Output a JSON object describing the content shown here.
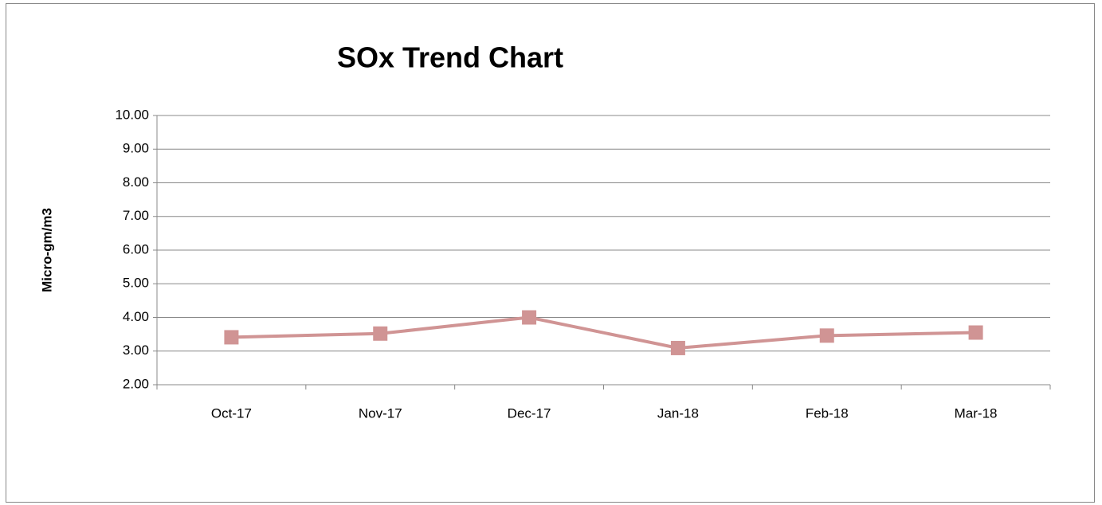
{
  "chart_data": {
    "type": "line",
    "title": "SOx Trend Chart",
    "y_label": "Micro-gm/m3",
    "categories": [
      "Oct-17",
      "Nov-17",
      "Dec-17",
      "Jan-18",
      "Feb-18",
      "Mar-18"
    ],
    "series": [
      {
        "name": "SOx",
        "color": "#d09494",
        "values": [
          3.41,
          3.52,
          4.0,
          3.09,
          3.46,
          3.55
        ]
      }
    ],
    "ylim": [
      2,
      10
    ],
    "yticks": [
      {
        "value": 2,
        "label": "2.00"
      },
      {
        "value": 3,
        "label": "3.00"
      },
      {
        "value": 4,
        "label": "4.00"
      },
      {
        "value": 5,
        "label": "5.00"
      },
      {
        "value": 6,
        "label": "6.00"
      },
      {
        "value": 7,
        "label": "7.00"
      },
      {
        "value": 8,
        "label": "8.00"
      },
      {
        "value": 9,
        "label": "9.00"
      },
      {
        "value": 10,
        "label": "10.00"
      }
    ],
    "grid": true,
    "legend": false
  }
}
